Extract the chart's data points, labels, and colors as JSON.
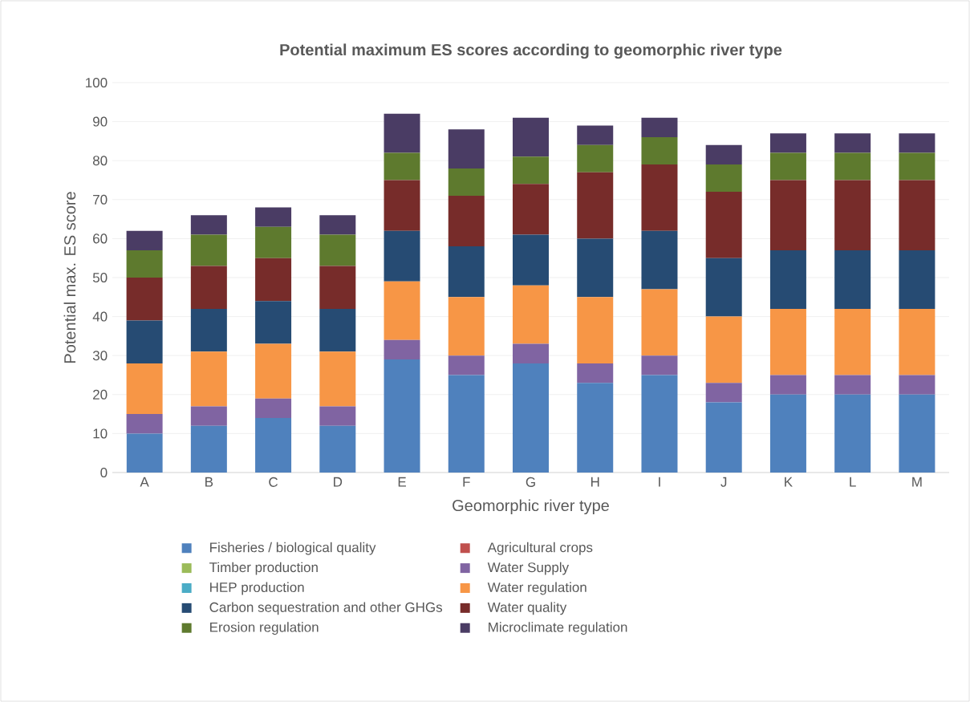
{
  "chart_data": {
    "type": "bar",
    "title": "Potential maximum ES scores according to geomorphic river type",
    "xlabel": "Geomorphic river type",
    "ylabel": "Potential max. ES score",
    "categories": [
      "A",
      "B",
      "C",
      "D",
      "E",
      "F",
      "G",
      "H",
      "I",
      "J",
      "K",
      "L",
      "M"
    ],
    "stacked": true,
    "ylim": [
      0,
      100
    ],
    "yticks": [
      0,
      10,
      20,
      30,
      40,
      50,
      60,
      70,
      80,
      90,
      100
    ],
    "grid": "y",
    "legend": "bottom",
    "series": [
      {
        "name": "Fisheries / biological quality",
        "color": "#4f81bd",
        "values": [
          10,
          12,
          14,
          12,
          29,
          25,
          28,
          23,
          25,
          18,
          20,
          20,
          20
        ]
      },
      {
        "name": "Agricultural crops",
        "color": "#c0504d",
        "values": [
          0,
          0,
          0,
          0,
          0,
          0,
          0,
          0,
          0,
          0,
          0,
          0,
          0
        ]
      },
      {
        "name": "Timber production",
        "color": "#9bbb59",
        "values": [
          0,
          0,
          0,
          0,
          0,
          0,
          0,
          0,
          0,
          0,
          0,
          0,
          0
        ]
      },
      {
        "name": "Water Supply",
        "color": "#8064a2",
        "values": [
          5,
          5,
          5,
          5,
          5,
          5,
          5,
          5,
          5,
          5,
          5,
          5,
          5
        ]
      },
      {
        "name": "HEP production",
        "color": "#4bacc6",
        "values": [
          0,
          0,
          0,
          0,
          0,
          0,
          0,
          0,
          0,
          0,
          0,
          0,
          0
        ]
      },
      {
        "name": "Water regulation",
        "color": "#f79646",
        "values": [
          13,
          14,
          14,
          14,
          15,
          15,
          15,
          17,
          17,
          17,
          17,
          17,
          17
        ]
      },
      {
        "name": "Carbon sequestration and other GHGs",
        "color": "#264b73",
        "values": [
          11,
          11,
          11,
          11,
          13,
          13,
          13,
          15,
          15,
          15,
          15,
          15,
          15
        ]
      },
      {
        "name": "Water quality",
        "color": "#772c2a",
        "values": [
          11,
          11,
          11,
          11,
          13,
          13,
          13,
          17,
          17,
          17,
          18,
          18,
          18
        ]
      },
      {
        "name": "Erosion regulation",
        "color": "#5e7a2e",
        "values": [
          7,
          8,
          8,
          8,
          7,
          7,
          7,
          7,
          7,
          7,
          7,
          7,
          7
        ]
      },
      {
        "name": "Microclimate regulation",
        "color": "#4a3c64",
        "values": [
          5,
          5,
          5,
          5,
          10,
          10,
          10,
          5,
          5,
          5,
          5,
          5,
          5
        ]
      }
    ]
  }
}
